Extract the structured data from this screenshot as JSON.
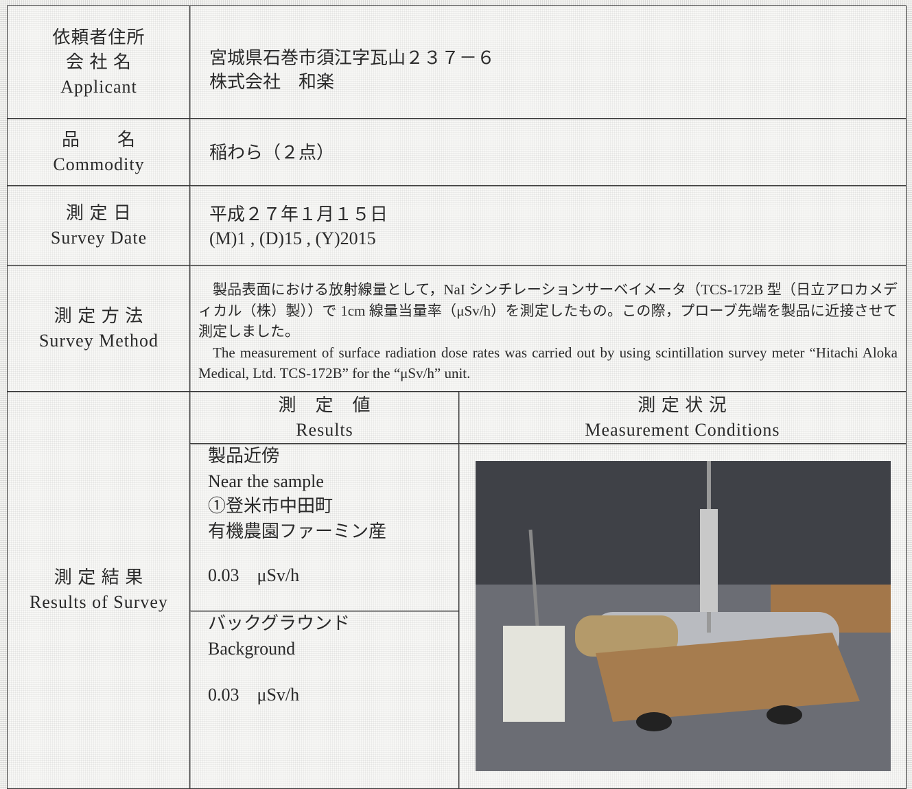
{
  "rows": [
    {
      "label": [
        "依頼者住所",
        "会 社 名",
        "Applicant"
      ],
      "value": [
        "宮城県石巻市須江字瓦山２３７－６",
        "株式会社　和楽"
      ]
    },
    {
      "label": [
        "品　　名",
        "Commodity"
      ],
      "value": [
        "稲わら（２点）"
      ]
    },
    {
      "label": [
        "測 定 日",
        "Survey Date"
      ],
      "value": [
        "平成２７年１月１５日",
        "(M)1 , (D)15 , (Y)2015"
      ]
    },
    {
      "label": [
        "測 定 方 法",
        "Survey Method"
      ],
      "value": [
        "製品表面における放射線量として，NaI シンチレーションサーベイメータ（TCS-172B 型（日立アロカメディカル（株）製））で 1cm 線量当量率（μSv/h）を測定したもの。この際，プローブ先端を製品に近接させて測定しました。",
        "The measurement of surface radiation dose rates was carried out by using scintillation survey meter “Hitachi Aloka Medical, Ltd. TCS-172B” for the “μSv/h” unit."
      ]
    }
  ],
  "results": {
    "label": [
      "測 定 結 果",
      "Results of Survey"
    ],
    "value_header": [
      "測　定　値",
      "Results"
    ],
    "conditions_header": [
      "測 定 状 況",
      "Measurement Conditions"
    ],
    "entries": [
      {
        "lines": [
          "製品近傍",
          "Near the sample",
          "①登米市中田町",
          "有機農園ファーミン産"
        ],
        "value": "0.03　μSv/h"
      },
      {
        "lines": [
          "バックグラウンド",
          "Background"
        ],
        "value": "0.03　μSv/h"
      }
    ]
  }
}
